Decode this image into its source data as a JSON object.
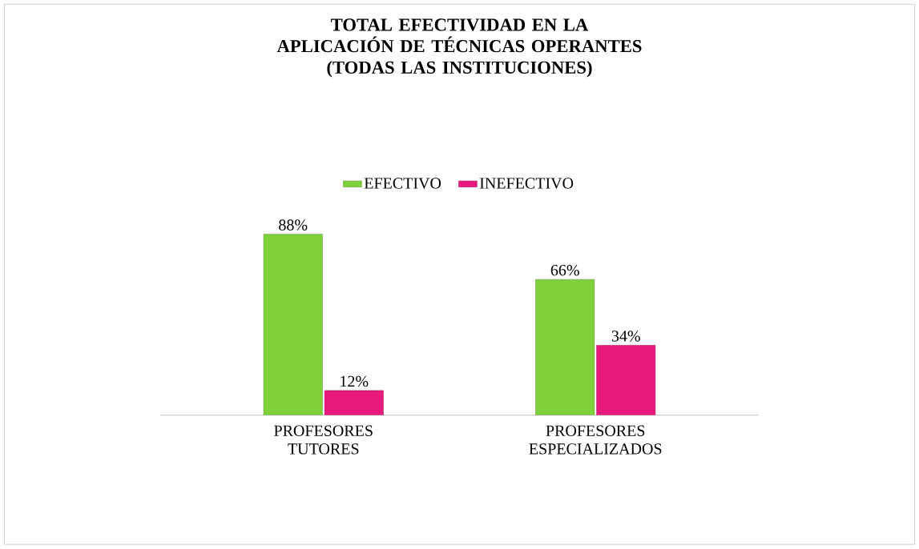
{
  "chart_data": {
    "type": "bar",
    "title": "TOTAL EFECTIVIDAD EN LA APLICACIÓN DE TÉCNICAS OPERANTES",
    "subtitle": "(TODAS LAS INSTITUCIONES)",
    "categories": [
      "PROFESORES TUTORES",
      "PROFESORES ESPECIALIZADOS"
    ],
    "series": [
      {
        "name": "EFECTIVO",
        "color": "#7fd13b",
        "values": [
          88,
          66
        ],
        "value_labels": [
          "88%",
          "66%"
        ]
      },
      {
        "name": "INEFECTIVO",
        "color": "#e8197d",
        "values": [
          12,
          34
        ],
        "value_labels": [
          "12%",
          "34%"
        ]
      }
    ],
    "legend": "top"
  }
}
